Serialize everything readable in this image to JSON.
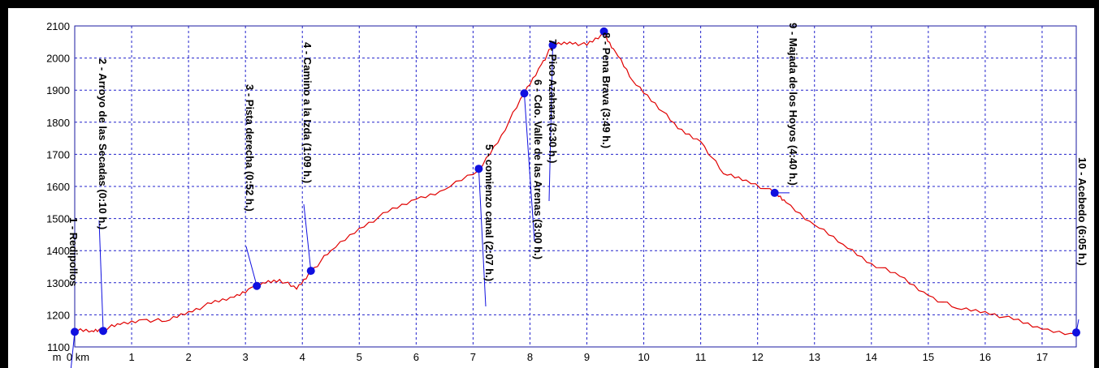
{
  "chart_data": {
    "type": "line",
    "xlabel_unit_y": "m",
    "xlabel_unit_x": "km",
    "xlim": [
      0,
      17.6
    ],
    "ylim": [
      1100,
      2100
    ],
    "x_ticks": [
      0,
      1,
      2,
      3,
      4,
      5,
      6,
      7,
      8,
      9,
      10,
      11,
      12,
      13,
      14,
      15,
      16,
      17
    ],
    "x_tick_labels": [
      "0 km",
      "1",
      "2",
      "3",
      "4",
      "5",
      "6",
      "7",
      "8",
      "9",
      "10",
      "11",
      "12",
      "13",
      "14",
      "15",
      "16",
      "17"
    ],
    "y_ticks": [
      1100,
      1200,
      1300,
      1400,
      1500,
      1600,
      1700,
      1800,
      1900,
      2000,
      2100
    ],
    "y_tick_labels": [
      "1100",
      "1200",
      "1300",
      "1400",
      "1500",
      "1600",
      "1700",
      "1800",
      "1900",
      "2000",
      "2100"
    ],
    "grid": true,
    "colors": {
      "profile": "#e00000",
      "grid": "#2222cc",
      "waypoint": "#1010e0",
      "frame": "#1a1aa0",
      "background": "#ffffff"
    },
    "series": [
      {
        "x": [
          0,
          0.3,
          0.5,
          0.8,
          1.2,
          1.6,
          2.0,
          2.4,
          2.8,
          3.1,
          3.3,
          3.6,
          3.9,
          4.15,
          4.5,
          5.0,
          5.5,
          6.0,
          6.5,
          7.1,
          7.5,
          7.9,
          8.2,
          8.4,
          8.7,
          9.0,
          9.3,
          9.5,
          9.8,
          10.2,
          10.6,
          11.0,
          11.4,
          11.8,
          12.3,
          12.5,
          13.0,
          13.5,
          14.0,
          14.5,
          15.0,
          15.5,
          16.0,
          16.5,
          17.0,
          17.6
        ],
        "y": [
          1150,
          1150,
          1155,
          1170,
          1185,
          1180,
          1210,
          1235,
          1255,
          1285,
          1300,
          1310,
          1280,
          1335,
          1400,
          1470,
          1520,
          1560,
          1590,
          1650,
          1760,
          1890,
          1980,
          2040,
          2050,
          2040,
          2075,
          2020,
          1930,
          1860,
          1780,
          1740,
          1640,
          1620,
          1580,
          1550,
          1480,
          1420,
          1360,
          1320,
          1260,
          1220,
          1210,
          1185,
          1155,
          1140
        ]
      }
    ],
    "waypoints": [
      {
        "x": 0.0,
        "y": 1147,
        "label": "1 - Redipollos"
      },
      {
        "x": 0.5,
        "y": 1150,
        "label": "2 - Arroyo de las Secadas (0:10 h.)"
      },
      {
        "x": 3.2,
        "y": 1290,
        "label": "3 - Pista derecha (0:52 h.)"
      },
      {
        "x": 4.15,
        "y": 1337,
        "label": "4 - Camino a la Izda (1:09 h.)"
      },
      {
        "x": 7.1,
        "y": 1655,
        "label": "5 - comienzo canal (2:07 h.)"
      },
      {
        "x": 7.9,
        "y": 1890,
        "label": "6 - Cdo. Valle de las Arenas (3:00 h.)"
      },
      {
        "x": 8.4,
        "y": 2040,
        "label": "7 - Pico Azahara (3:30 h.)"
      },
      {
        "x": 9.3,
        "y": 2083,
        "label": "8 - Pena Brava (3:49 h.)"
      },
      {
        "x": 12.3,
        "y": 1580,
        "label": "9 - Majada de los Hoyos (4:40 h.)"
      },
      {
        "x": 17.6,
        "y": 1145,
        "label": "10 - Acebedo (6:05 h.)"
      }
    ]
  }
}
